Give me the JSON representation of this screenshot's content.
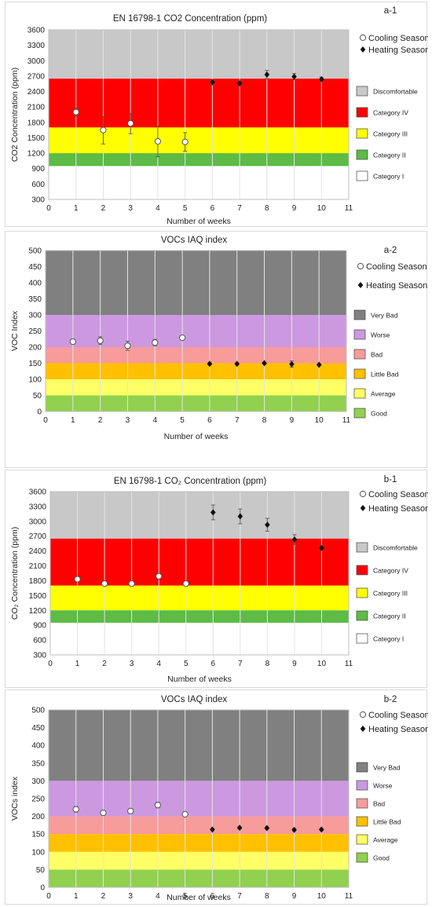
{
  "chart_data": [
    {
      "type": "scatter",
      "panel_label": "a-1",
      "title": "EN 16798-1 CO2 Concentration  (ppm)",
      "xlabel": "Number of weeks",
      "ylabel": "CO2 Concentration (ppm)",
      "xlim": [
        0,
        11
      ],
      "ylim": [
        300,
        3600
      ],
      "xticks": [
        "0",
        "1",
        "2",
        "3",
        "4",
        "5",
        "6",
        "7",
        "8",
        "9",
        "10",
        "11"
      ],
      "yticks": [
        "300",
        "600",
        "900",
        "1200",
        "1500",
        "1800",
        "2100",
        "2400",
        "2700",
        "3000",
        "3300",
        "3600"
      ],
      "bands": [
        {
          "name": "Discomfortable",
          "from": 2650,
          "to": 3600,
          "color": "#c8c8c8"
        },
        {
          "name": "Category IV",
          "from": 1700,
          "to": 2650,
          "color": "#ff0000"
        },
        {
          "name": "Category III",
          "from": 1200,
          "to": 1700,
          "color": "#ffff00"
        },
        {
          "name": "Category II",
          "from": 950,
          "to": 1200,
          "color": "#5dbb46"
        },
        {
          "name": "Category I",
          "from": 300,
          "to": 950,
          "color": "#ffffff"
        }
      ],
      "series": [
        {
          "name": "Cooling Season",
          "marker": "circle",
          "x": [
            1,
            2,
            3,
            4,
            5
          ],
          "y": [
            2000,
            1650,
            1780,
            1430,
            1420
          ],
          "err": [
            80,
            270,
            200,
            300,
            180
          ]
        },
        {
          "name": "Heating Season",
          "marker": "diamond",
          "x": [
            6,
            7,
            8,
            9,
            10
          ],
          "y": [
            2580,
            2560,
            2730,
            2690,
            2640
          ],
          "err": [
            40,
            40,
            80,
            60,
            40
          ]
        }
      ],
      "grid": true,
      "legend": "right"
    },
    {
      "type": "scatter",
      "panel_label": "a-2",
      "title": "VOCs IAQ index",
      "xlabel": "Number of weeks",
      "ylabel": "VOC Index",
      "xlim": [
        0,
        11
      ],
      "ylim": [
        0,
        500
      ],
      "xticks": [
        "0",
        "1",
        "2",
        "3",
        "4",
        "5",
        "6",
        "7",
        "8",
        "9",
        "10",
        "11"
      ],
      "yticks": [
        "0",
        "50",
        "100",
        "150",
        "200",
        "250",
        "300",
        "350",
        "400",
        "450",
        "500"
      ],
      "bands": [
        {
          "name": "Very Bad",
          "from": 300,
          "to": 500,
          "color": "#808080"
        },
        {
          "name": "Worse",
          "from": 200,
          "to": 300,
          "color": "#cc99e0"
        },
        {
          "name": "Bad",
          "from": 150,
          "to": 200,
          "color": "#f79b9b"
        },
        {
          "name": "Little Bad",
          "from": 100,
          "to": 150,
          "color": "#ffc000"
        },
        {
          "name": "Average",
          "from": 50,
          "to": 100,
          "color": "#ffff66"
        },
        {
          "name": "Good",
          "from": 0,
          "to": 50,
          "color": "#92d050"
        }
      ],
      "series": [
        {
          "name": "Cooling Season",
          "marker": "circle",
          "x": [
            1,
            2,
            3,
            4,
            5
          ],
          "y": [
            217,
            220,
            204,
            214,
            229
          ],
          "err": [
            8,
            12,
            14,
            10,
            4
          ]
        },
        {
          "name": "Heating Season",
          "marker": "diamond",
          "x": [
            6,
            7,
            8,
            9,
            10
          ],
          "y": [
            148,
            148,
            150,
            147,
            145
          ],
          "err": [
            3,
            3,
            3,
            10,
            3
          ]
        }
      ],
      "grid": true,
      "legend": "right"
    },
    {
      "type": "scatter",
      "panel_label": "b-1",
      "title": "EN 16798-1 CO₂ Concentration  (ppm)",
      "xlabel": "Number of weeks",
      "ylabel": "CO₂ Concentration (ppm)",
      "xlim": [
        0,
        11
      ],
      "ylim": [
        300,
        3600
      ],
      "xticks": [
        "0",
        "1",
        "2",
        "3",
        "4",
        "5",
        "6",
        "7",
        "8",
        "9",
        "10",
        "11"
      ],
      "yticks": [
        "300",
        "600",
        "900",
        "1200",
        "1500",
        "1800",
        "2100",
        "2400",
        "2700",
        "3000",
        "3300",
        "3600"
      ],
      "bands": [
        {
          "name": "Discomfortable",
          "from": 2650,
          "to": 3600,
          "color": "#c8c8c8"
        },
        {
          "name": "Category IV",
          "from": 1700,
          "to": 2650,
          "color": "#ff0000"
        },
        {
          "name": "Category III",
          "from": 1200,
          "to": 1700,
          "color": "#ffff00"
        },
        {
          "name": "Category II",
          "from": 950,
          "to": 1200,
          "color": "#5dbb46"
        },
        {
          "name": "Category I",
          "from": 300,
          "to": 950,
          "color": "#ffffff"
        }
      ],
      "series": [
        {
          "name": "Cooling Season",
          "marker": "circle",
          "x": [
            1,
            2,
            3,
            4,
            5
          ],
          "y": [
            1830,
            1740,
            1740,
            1890,
            1740
          ],
          "err": [
            30,
            30,
            30,
            30,
            30
          ]
        },
        {
          "name": "Heating Season",
          "marker": "diamond",
          "x": [
            6,
            7,
            8,
            9,
            10
          ],
          "y": [
            3180,
            3100,
            2930,
            2630,
            2460
          ],
          "err": [
            150,
            150,
            130,
            100,
            50
          ]
        }
      ],
      "grid": true,
      "legend": "right"
    },
    {
      "type": "scatter",
      "panel_label": "b-2",
      "title": "VOCs IAQ index",
      "xlabel": "Number of weeks",
      "ylabel": "VOCs  index",
      "xlim": [
        0,
        11
      ],
      "ylim": [
        0,
        500
      ],
      "xticks": [
        "0",
        "1",
        "2",
        "3",
        "4",
        "5",
        "6",
        "7",
        "8",
        "9",
        "10",
        "11"
      ],
      "yticks": [
        "0",
        "50",
        "100",
        "150",
        "200",
        "250",
        "300",
        "350",
        "400",
        "450",
        "500"
      ],
      "bands": [
        {
          "name": "Very Bad",
          "from": 300,
          "to": 500,
          "color": "#808080"
        },
        {
          "name": "Worse",
          "from": 200,
          "to": 300,
          "color": "#cc99e0"
        },
        {
          "name": "Bad",
          "from": 150,
          "to": 200,
          "color": "#f79b9b"
        },
        {
          "name": "Little Bad",
          "from": 100,
          "to": 150,
          "color": "#ffc000"
        },
        {
          "name": "Average",
          "from": 50,
          "to": 100,
          "color": "#ffff66"
        },
        {
          "name": "Good",
          "from": 0,
          "to": 50,
          "color": "#92d050"
        }
      ],
      "series": [
        {
          "name": "Cooling Season",
          "marker": "circle",
          "x": [
            1,
            2,
            3,
            4,
            5
          ],
          "y": [
            220,
            210,
            215,
            232,
            206
          ],
          "err": [
            8,
            6,
            6,
            8,
            5
          ]
        },
        {
          "name": "Heating Season",
          "marker": "diamond",
          "x": [
            6,
            7,
            8,
            9,
            10
          ],
          "y": [
            163,
            168,
            167,
            162,
            163
          ],
          "err": [
            3,
            3,
            3,
            3,
            3
          ]
        }
      ],
      "grid": true,
      "legend": "right"
    }
  ]
}
